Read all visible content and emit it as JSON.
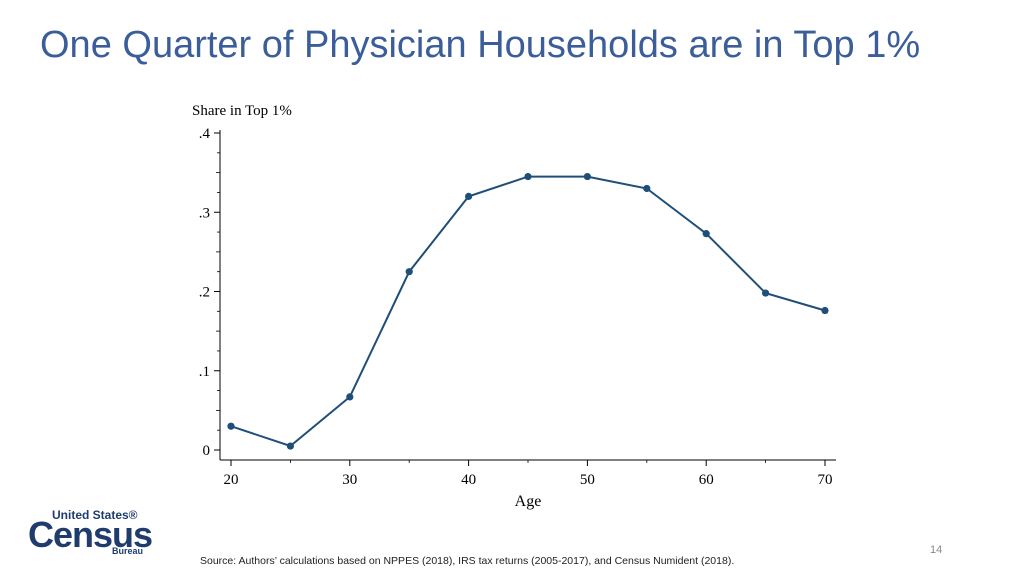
{
  "slide": {
    "title": "One Quarter of Physician Households are in Top 1%",
    "source": "Source: Authors’ calculations based on NPPES (2018), IRS tax returns (2005-2017), and Census Numident (2018).",
    "page_number": "14"
  },
  "logo": {
    "line1": "United States®",
    "line2": "Census",
    "line3": "Bureau"
  },
  "chart_data": {
    "type": "line",
    "title": "",
    "xlabel": "Age",
    "ylabel": "Share in Top 1%",
    "x": [
      20,
      25,
      30,
      35,
      40,
      45,
      50,
      55,
      60,
      65,
      70
    ],
    "series": [
      {
        "values": [
          0.03,
          0.005,
          0.067,
          0.225,
          0.32,
          0.345,
          0.345,
          0.33,
          0.273,
          0.198,
          0.176
        ]
      }
    ],
    "xticks": [
      20,
      30,
      40,
      50,
      60,
      70
    ],
    "xtick_labels": [
      "20",
      "30",
      "40",
      "50",
      "60",
      "70"
    ],
    "yticks": [
      0,
      0.1,
      0.2,
      0.3,
      0.4
    ],
    "ytick_labels": [
      "0",
      ".1",
      ".2",
      ".3",
      ".4"
    ],
    "xlim": [
      20,
      70
    ],
    "ylim": [
      0,
      0.4
    ],
    "grid": false,
    "line_color": "#1f4e79"
  }
}
